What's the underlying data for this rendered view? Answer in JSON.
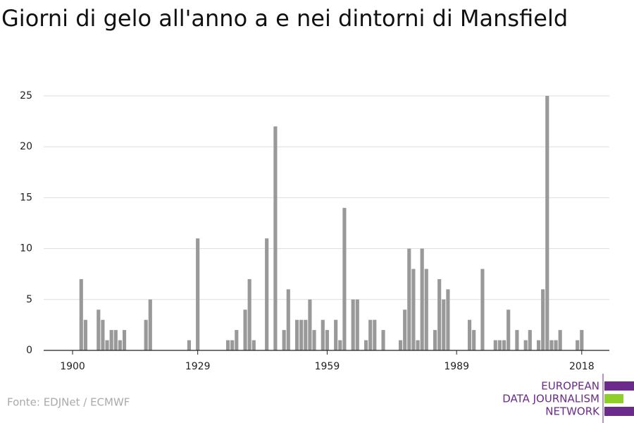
{
  "chart_data": {
    "type": "bar",
    "title": "Giorni di gelo all'anno a e nei dintorni di Mansfield",
    "source": "Fonte: EDJNet / ECMWF",
    "logo": [
      "EUROPEAN",
      "DATA JOURNALISM",
      "NETWORK"
    ],
    "color": "#999999",
    "x": [
      1902,
      1903,
      1906,
      1907,
      1908,
      1909,
      1910,
      1911,
      1912,
      1917,
      1918,
      1927,
      1929,
      1936,
      1937,
      1938,
      1940,
      1941,
      1942,
      1945,
      1947,
      1949,
      1950,
      1952,
      1953,
      1954,
      1955,
      1956,
      1958,
      1959,
      1961,
      1962,
      1963,
      1965,
      1966,
      1968,
      1969,
      1970,
      1972,
      1976,
      1977,
      1978,
      1979,
      1980,
      1981,
      1982,
      1984,
      1985,
      1986,
      1987,
      1992,
      1993,
      1995,
      1998,
      1999,
      2000,
      2001,
      2003,
      2005,
      2006,
      2008,
      2009,
      2010,
      2011,
      2012,
      2013,
      2017,
      2018
    ],
    "values": [
      7,
      3,
      4,
      3,
      1,
      2,
      2,
      1,
      2,
      3,
      5,
      1,
      11,
      1,
      1,
      2,
      4,
      7,
      1,
      11,
      22,
      2,
      6,
      3,
      3,
      3,
      5,
      2,
      3,
      2,
      3,
      1,
      14,
      5,
      5,
      1,
      3,
      3,
      2,
      1,
      4,
      10,
      8,
      1,
      10,
      8,
      2,
      7,
      5,
      6,
      3,
      2,
      8,
      1,
      1,
      1,
      4,
      2,
      1,
      2,
      1,
      6,
      25,
      1,
      1,
      2,
      1,
      2
    ],
    "xlim": [
      1893.3,
      2024.4
    ],
    "xticks": [
      1900,
      1929,
      1959,
      1989,
      2018
    ],
    "ylim": [
      0,
      25
    ],
    "yticks": [
      0,
      5,
      10,
      15,
      20,
      25
    ],
    "grid": true
  }
}
